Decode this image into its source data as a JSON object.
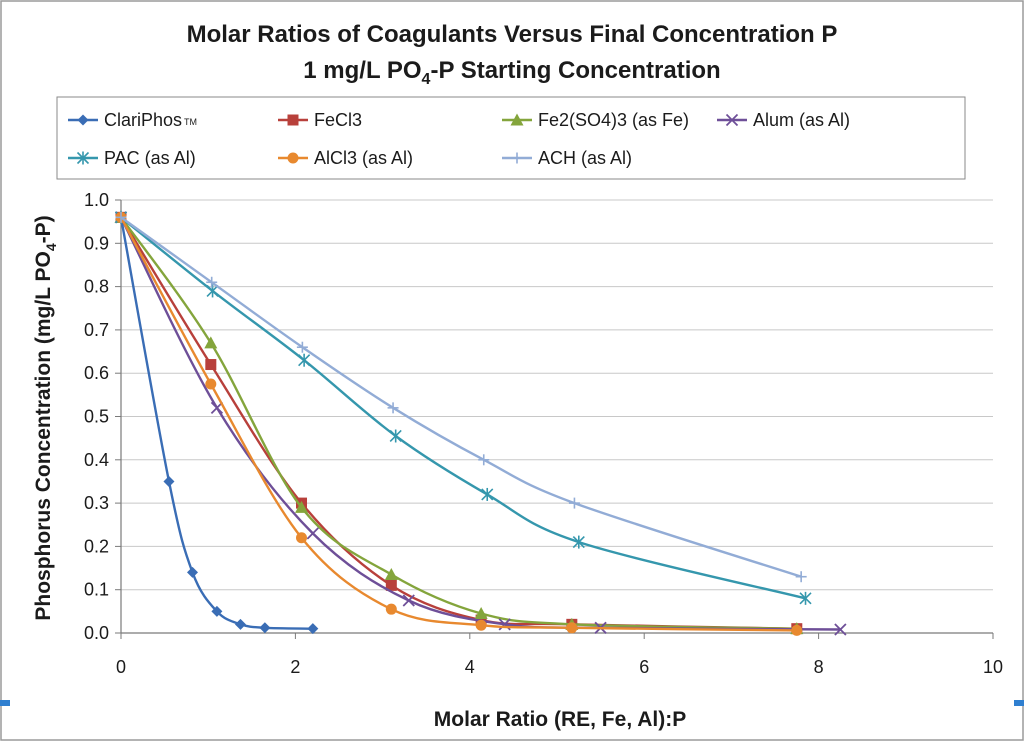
{
  "chart_data": {
    "type": "line",
    "title": "Molar Ratios of Coagulants Versus Final Concentration P",
    "subtitle_parts": [
      "1 mg/L PO",
      "4",
      "-P Starting Concentration"
    ],
    "xlabel": "Molar Ratio (RE, Fe, Al):P",
    "ylabel_parts": [
      "Phosphorus Concentration (mg/L PO",
      "4",
      "-P)"
    ],
    "xlim": [
      0,
      10
    ],
    "ylim": [
      0,
      1.0
    ],
    "x_ticks": [
      "0",
      "2",
      "4",
      "6",
      "8",
      "10"
    ],
    "y_ticks": [
      "0.0",
      "0.1",
      "0.2",
      "0.3",
      "0.4",
      "0.5",
      "0.6",
      "0.7",
      "0.8",
      "0.9",
      "1.0"
    ],
    "grid": "horizontal",
    "legend_position": "top",
    "series": [
      {
        "name": "ClariPhos",
        "name_suffix": "TM",
        "color": "#3a6db5",
        "marker": "diamond",
        "x": [
          0,
          0.55,
          0.82,
          1.1,
          1.37,
          1.65,
          2.2
        ],
        "y": [
          0.96,
          0.35,
          0.14,
          0.05,
          0.02,
          0.012,
          0.01
        ]
      },
      {
        "name": "FeCl3",
        "color": "#b8403b",
        "marker": "square",
        "x": [
          0,
          1.03,
          2.07,
          3.1,
          4.13,
          5.17,
          7.75
        ],
        "y": [
          0.96,
          0.62,
          0.3,
          0.11,
          0.03,
          0.02,
          0.01
        ]
      },
      {
        "name": "Fe2(SO4)3 (as Fe)",
        "color": "#84a53c",
        "marker": "triangle",
        "x": [
          0,
          1.03,
          2.07,
          3.1,
          4.13,
          5.17,
          7.75
        ],
        "y": [
          0.96,
          0.67,
          0.29,
          0.135,
          0.045,
          0.02,
          0.01
        ]
      },
      {
        "name": "Alum (as Al)",
        "color": "#6e4f98",
        "marker": "x",
        "x": [
          0,
          1.1,
          2.2,
          3.3,
          4.4,
          5.5,
          8.25
        ],
        "y": [
          0.96,
          0.52,
          0.23,
          0.075,
          0.02,
          0.012,
          0.008
        ]
      },
      {
        "name": "PAC (as Al)",
        "color": "#3597ad",
        "marker": "star",
        "x": [
          0,
          1.05,
          2.1,
          3.15,
          4.2,
          5.25,
          7.85
        ],
        "y": [
          0.96,
          0.79,
          0.63,
          0.455,
          0.32,
          0.21,
          0.08
        ]
      },
      {
        "name": "AlCl3 (as Al)",
        "color": "#e8892f",
        "marker": "circle",
        "x": [
          0,
          1.03,
          2.07,
          3.1,
          4.13,
          5.17,
          7.75
        ],
        "y": [
          0.96,
          0.575,
          0.22,
          0.055,
          0.018,
          0.012,
          0.006
        ]
      },
      {
        "name": "ACH (as Al)",
        "color": "#92acd6",
        "marker": "plus",
        "x": [
          0,
          1.04,
          2.08,
          3.12,
          4.16,
          5.2,
          7.8
        ],
        "y": [
          0.96,
          0.81,
          0.66,
          0.52,
          0.4,
          0.3,
          0.13
        ]
      }
    ]
  }
}
